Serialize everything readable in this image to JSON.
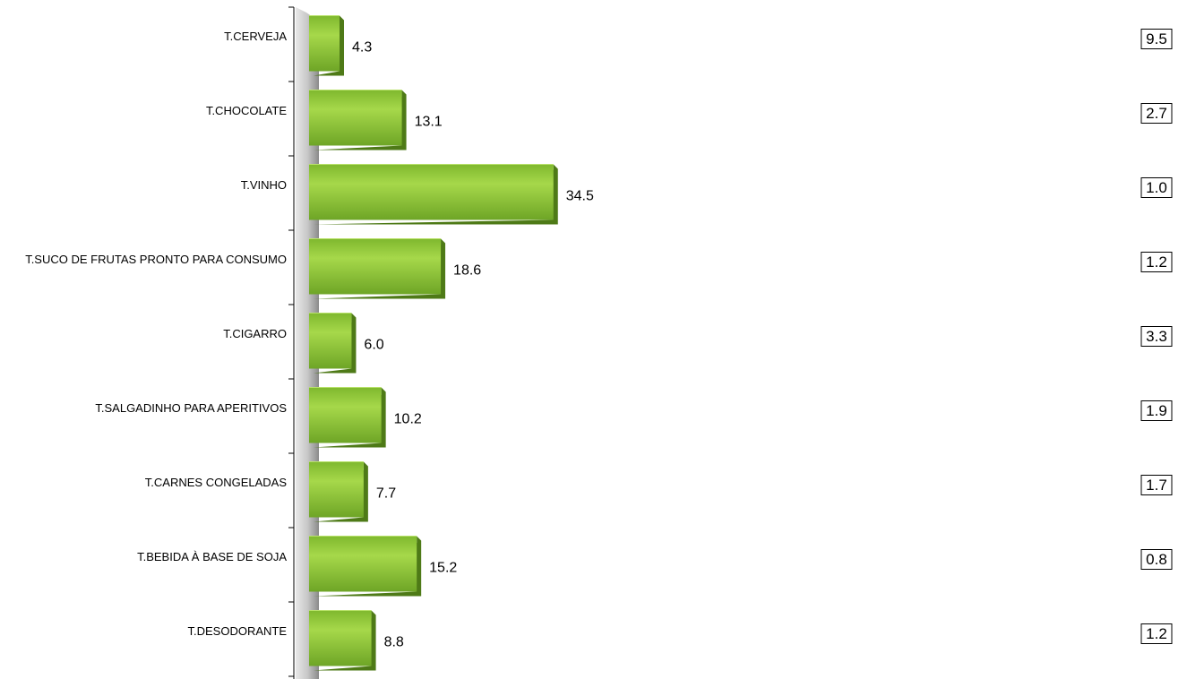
{
  "chart_data": {
    "type": "bar",
    "orientation": "horizontal",
    "categories": [
      "T.CERVEJA",
      "T.CHOCOLATE",
      "T.VINHO",
      "T.SUCO DE FRUTAS PRONTO PARA CONSUMO",
      "T.CIGARRO",
      "T.SALGADINHO PARA APERITIVOS",
      "T.CARNES CONGELADAS",
      "T.BEBIDA À BASE DE SOJA",
      "T.DESODORANTE"
    ],
    "values": [
      4.3,
      13.1,
      34.5,
      18.6,
      6.0,
      10.2,
      7.7,
      15.2,
      8.8
    ],
    "value_labels": [
      "4.3",
      "13.1",
      "34.5",
      "18.6",
      "6.0",
      "10.2",
      "7.7",
      "15.2",
      "8.8"
    ],
    "boxed_values": [
      9.5,
      2.7,
      1.0,
      1.2,
      3.3,
      1.9,
      1.7,
      0.8,
      1.2
    ],
    "boxed_value_labels": [
      "9.5",
      "2.7",
      "1.0",
      "1.2",
      "3.3",
      "1.9",
      "1.7",
      "0.8",
      "1.2"
    ],
    "color": "#8cc63f",
    "xlim": [
      0,
      117
    ]
  }
}
